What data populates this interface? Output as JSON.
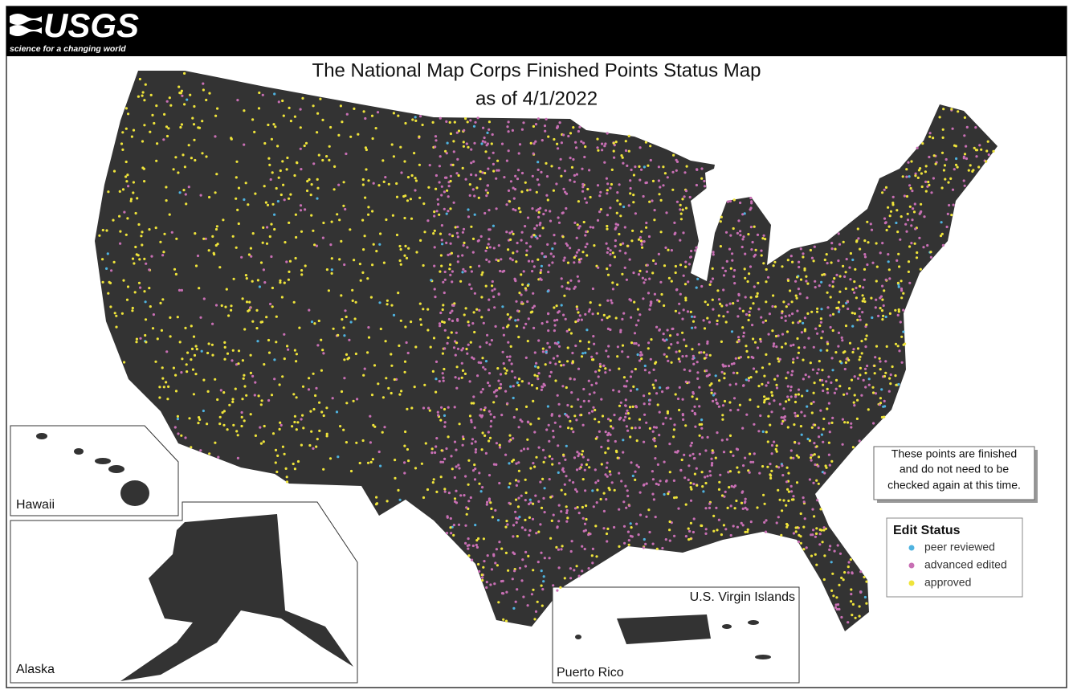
{
  "header": {
    "logo": "USGS",
    "tagline": "science for a changing world"
  },
  "title": {
    "line1": "The National Map Corps Finished Points Status Map",
    "line2": "as of 4/1/2022"
  },
  "insets": {
    "hawaii": "Hawaii",
    "alaska": "Alaska",
    "virgin_islands": "U.S. Virgin Islands",
    "puerto_rico": "Puerto Rico"
  },
  "note": {
    "lines": [
      "These points are finished",
      "and do not need to be",
      "checked again at this time."
    ]
  },
  "legend": {
    "title": "Edit Status",
    "items": [
      {
        "label": "peer reviewed",
        "color": "#4fb3e0"
      },
      {
        "label": "advanced edited",
        "color": "#c86fb4"
      },
      {
        "label": "approved",
        "color": "#efe43a"
      }
    ]
  }
}
